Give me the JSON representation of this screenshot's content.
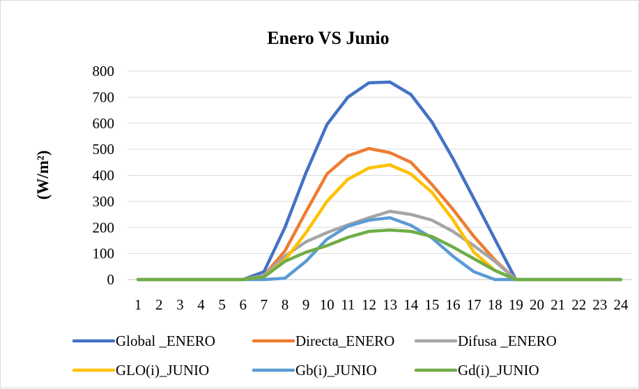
{
  "chart_data": {
    "type": "line",
    "title": "Enero VS Junio",
    "xlabel": "",
    "ylabel": "(W/m²)",
    "ylim": [
      0,
      800
    ],
    "yticks": [
      0,
      100,
      200,
      300,
      400,
      500,
      600,
      700,
      800
    ],
    "categories": [
      "1",
      "2",
      "3",
      "4",
      "5",
      "6",
      "7",
      "8",
      "9",
      "10",
      "11",
      "12",
      "13",
      "14",
      "15",
      "16",
      "17",
      "18",
      "19",
      "20",
      "21",
      "22",
      "23",
      "24"
    ],
    "grid": true,
    "legend": "bottom",
    "series": [
      {
        "name": "Global _ENERO",
        "color": "#4472C4",
        "values": [
          0,
          0,
          0,
          0,
          0,
          0,
          30,
          200,
          410,
          595,
          700,
          755,
          758,
          710,
          605,
          465,
          310,
          155,
          0,
          0,
          0,
          0,
          0,
          0
        ]
      },
      {
        "name": "Directa_ENERO",
        "color": "#ED7D31",
        "values": [
          0,
          0,
          0,
          0,
          0,
          0,
          15,
          110,
          260,
          405,
          475,
          503,
          487,
          450,
          365,
          270,
          165,
          75,
          0,
          0,
          0,
          0,
          0,
          0
        ]
      },
      {
        "name": "Difusa _ENERO",
        "color": "#A5A5A5",
        "values": [
          0,
          0,
          0,
          0,
          0,
          0,
          15,
          90,
          145,
          180,
          210,
          237,
          262,
          250,
          228,
          185,
          130,
          70,
          0,
          0,
          0,
          0,
          0,
          0
        ]
      },
      {
        "name": "GLO(i)_JUNIO",
        "color": "#FFC000",
        "values": [
          0,
          0,
          0,
          0,
          0,
          0,
          10,
          75,
          180,
          300,
          385,
          428,
          440,
          405,
          335,
          230,
          105,
          35,
          0,
          0,
          0,
          0,
          0,
          0
        ]
      },
      {
        "name": "Gb(i)_JUNIO",
        "color": "#5B9BD5",
        "values": [
          0,
          0,
          0,
          0,
          0,
          0,
          0,
          5,
          70,
          155,
          205,
          228,
          237,
          208,
          160,
          90,
          30,
          0,
          0,
          0,
          0,
          0,
          0,
          0
        ]
      },
      {
        "name": "Gd(i)_JUNIO",
        "color": "#70AD47",
        "values": [
          0,
          0,
          0,
          0,
          0,
          0,
          10,
          70,
          105,
          130,
          162,
          185,
          190,
          185,
          165,
          125,
          80,
          35,
          0,
          0,
          0,
          0,
          0,
          0
        ]
      }
    ]
  }
}
